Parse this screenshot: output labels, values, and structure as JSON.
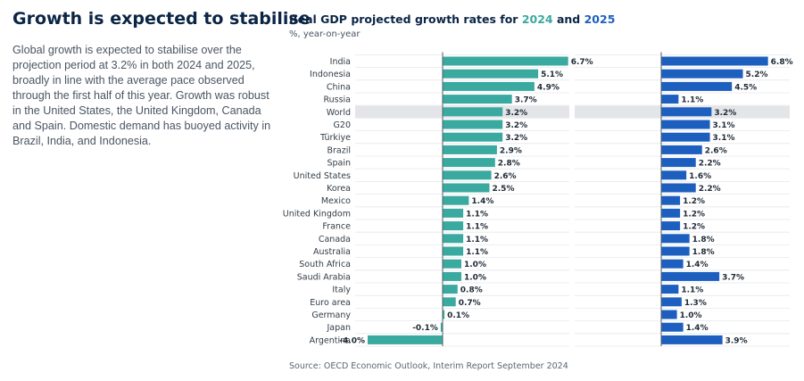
{
  "headline": "Growth is expected to stabilise",
  "body_text": "Global growth is expected to stabilise over the projection period at 3.2% in both 2024 and 2025, broadly in line with the average pace observed through the first half of this year. Growth was robust in the United States, the United Kingdom, Canada and Spain. Domestic demand has buoyed activity in Brazil, India, and Indonesia.",
  "chart_title": {
    "prefix": "Real GDP projected growth rates for ",
    "year1": "2024",
    "joiner": " and ",
    "year2": "2025"
  },
  "chart_subtitle": "%, year-on-year",
  "source_note": "Source: OECD Economic Outlook, Interim Report September 2024",
  "colors": {
    "series_2024": "#3aa99f",
    "series_2025": "#1d5fbf",
    "highlight_row": "#e3e5e8",
    "headline": "#0b2545"
  },
  "chart_data": {
    "type": "bar",
    "orientation": "horizontal",
    "categories": [
      "India",
      "Indonesia",
      "China",
      "Russia",
      "World",
      "G20",
      "Türkiye",
      "Brazil",
      "Spain",
      "United States",
      "Korea",
      "Mexico",
      "United Kingdom",
      "France",
      "Canada",
      "Australia",
      "South Africa",
      "Saudi Arabia",
      "Italy",
      "Euro area",
      "Germany",
      "Japan",
      "Argentina"
    ],
    "highlighted_category": "World",
    "series": [
      {
        "name": "2024",
        "values": [
          6.7,
          5.1,
          4.9,
          3.7,
          3.2,
          3.2,
          3.2,
          2.9,
          2.8,
          2.6,
          2.5,
          1.4,
          1.1,
          1.1,
          1.1,
          1.1,
          1.0,
          1.0,
          0.8,
          0.7,
          0.1,
          -0.1,
          -4.0
        ],
        "labels": [
          "6.7%",
          "5.1%",
          "4.9%",
          "3.7%",
          "3.2%",
          "3.2%",
          "3.2%",
          "2.9%",
          "2.8%",
          "2.6%",
          "2.5%",
          "1.4%",
          "1.1%",
          "1.1%",
          "1.1%",
          "1.1%",
          "1.0%",
          "1.0%",
          "0.8%",
          "0.7%",
          "0.1%",
          "-0.1%",
          "-4.0%"
        ]
      },
      {
        "name": "2025",
        "values": [
          6.8,
          5.2,
          4.5,
          1.1,
          3.2,
          3.1,
          3.1,
          2.6,
          2.2,
          1.6,
          2.2,
          1.2,
          1.2,
          1.2,
          1.8,
          1.8,
          1.4,
          3.7,
          1.1,
          1.3,
          1.0,
          1.4,
          3.9
        ],
        "labels": [
          "6.8%",
          "5.2%",
          "4.5%",
          "1.1%",
          "3.2%",
          "3.1%",
          "3.1%",
          "2.6%",
          "2.2%",
          "1.6%",
          "2.2%",
          "1.2%",
          "1.2%",
          "1.2%",
          "1.8%",
          "1.8%",
          "1.4%",
          "3.7%",
          "1.1%",
          "1.3%",
          "1.0%",
          "1.4%",
          "3.9%"
        ]
      }
    ],
    "unit": "%",
    "grid": false,
    "legend": "in title"
  }
}
